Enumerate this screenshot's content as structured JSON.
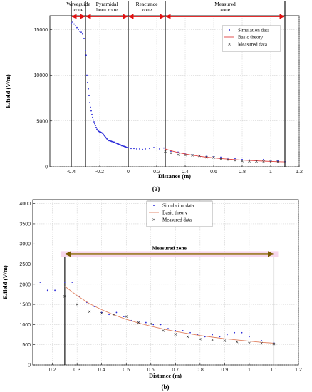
{
  "chart_data": [
    {
      "id": "a",
      "type": "scatter",
      "caption": "(a)",
      "xlabel": "Distance (m)",
      "ylabel": "E/field (V/m)",
      "xlim": [
        -0.55,
        1.2
      ],
      "ylim": [
        0,
        16500
      ],
      "xticks": [
        -0.4,
        -0.2,
        0,
        0.2,
        0.4,
        0.6,
        0.8,
        1,
        1.2
      ],
      "xtick_labels": [
        "-0.4",
        "-0.2",
        "0",
        "0.2",
        "0.4",
        "0.6",
        "0.8",
        "1",
        "1.2"
      ],
      "yticks": [
        0,
        5000,
        10000,
        15000
      ],
      "ytick_labels": [
        "0",
        "5000",
        "10000",
        "15000"
      ],
      "grid": true,
      "legend_position": "top-right",
      "zone_boundaries": [
        -0.4,
        -0.3,
        0,
        0.26,
        1.1
      ],
      "zones": [
        {
          "label_lines": [
            "Waveguide",
            "zone"
          ],
          "from": -0.4,
          "to": -0.3
        },
        {
          "label_lines": [
            "Pyramidal",
            "horn zone"
          ],
          "from": -0.3,
          "to": 0
        },
        {
          "label_lines": [
            "Reactance",
            "zone"
          ],
          "from": 0,
          "to": 0.26
        },
        {
          "label_lines": [
            "Measured",
            "zone"
          ],
          "from": 0.26,
          "to": 1.1
        }
      ],
      "series": [
        {
          "name": "Simulation data",
          "kind": "dots",
          "color": "#2a2ad8",
          "x": [
            -0.4,
            -0.39,
            -0.38,
            -0.37,
            -0.36,
            -0.35,
            -0.34,
            -0.33,
            -0.32,
            -0.31,
            -0.3,
            -0.295,
            -0.29,
            -0.285,
            -0.28,
            -0.275,
            -0.27,
            -0.265,
            -0.26,
            -0.255,
            -0.25,
            -0.245,
            -0.24,
            -0.235,
            -0.23,
            -0.225,
            -0.22,
            -0.215,
            -0.21,
            -0.205,
            -0.2,
            -0.195,
            -0.19,
            -0.185,
            -0.18,
            -0.175,
            -0.17,
            -0.165,
            -0.16,
            -0.155,
            -0.15,
            -0.145,
            -0.14,
            -0.135,
            -0.13,
            -0.125,
            -0.12,
            -0.115,
            -0.11,
            -0.105,
            -0.1,
            -0.095,
            -0.09,
            -0.085,
            -0.08,
            -0.075,
            -0.07,
            -0.065,
            -0.06,
            -0.055,
            -0.05,
            -0.045,
            -0.04,
            -0.035,
            -0.03,
            -0.025,
            -0.02,
            -0.015,
            -0.01,
            -0.005,
            0,
            0.02,
            0.04,
            0.06,
            0.08,
            0.1,
            0.12,
            0.15,
            0.18,
            0.22,
            0.25,
            0.3,
            0.35,
            0.4,
            0.45,
            0.5,
            0.55,
            0.6,
            0.65,
            0.7,
            0.75,
            0.8,
            0.85,
            0.9,
            0.95,
            1.0,
            1.05,
            1.1
          ],
          "y": [
            15700,
            15800,
            15600,
            15400,
            15200,
            15000,
            14800,
            14700,
            14500,
            14000,
            12700,
            12200,
            10000,
            9200,
            8500,
            7800,
            7000,
            6500,
            6100,
            5700,
            5400,
            5100,
            4900,
            4700,
            4500,
            4300,
            4100,
            4000,
            3900,
            3850,
            3800,
            3800,
            3750,
            3700,
            3650,
            3550,
            3450,
            3350,
            3250,
            3150,
            3050,
            2950,
            2900,
            2850,
            2850,
            2800,
            2800,
            2750,
            2750,
            2700,
            2700,
            2650,
            2600,
            2600,
            2550,
            2500,
            2500,
            2450,
            2400,
            2400,
            2350,
            2300,
            2300,
            2250,
            2250,
            2200,
            2200,
            2150,
            2100,
            2100,
            2100,
            2000,
            2000,
            1950,
            1950,
            1900,
            1950,
            2000,
            2100,
            1950,
            2050,
            1700,
            1600,
            1500,
            1300,
            1200,
            1150,
            1100,
            1050,
            950,
            900,
            800,
            750,
            700,
            800,
            700,
            650,
            550
          ]
        },
        {
          "name": "Basic theory",
          "kind": "line",
          "color": "#e04040",
          "x": [
            0.26,
            0.3,
            0.35,
            0.4,
            0.45,
            0.5,
            0.55,
            0.6,
            0.65,
            0.7,
            0.75,
            0.8,
            0.85,
            0.9,
            0.95,
            1.0,
            1.05,
            1.1
          ],
          "y": [
            1950,
            1760,
            1560,
            1400,
            1270,
            1150,
            1050,
            970,
            900,
            840,
            780,
            730,
            690,
            650,
            620,
            590,
            560,
            540
          ]
        },
        {
          "name": "Measured data",
          "kind": "cross",
          "color": "#333333",
          "x": [
            0.26,
            0.3,
            0.35,
            0.4,
            0.45,
            0.5,
            0.55,
            0.6,
            0.65,
            0.7,
            0.75,
            0.8,
            0.85,
            0.9,
            0.95,
            1.0,
            1.05,
            1.1
          ],
          "y": [
            1700,
            1500,
            1320,
            1280,
            1260,
            1200,
            1050,
            1020,
            850,
            760,
            700,
            640,
            620,
            600,
            570,
            540,
            540,
            520
          ]
        }
      ]
    },
    {
      "id": "b",
      "type": "scatter",
      "caption": "(b)",
      "xlabel": "Distance (m)",
      "ylabel": "E/field (V/m)",
      "xlim": [
        0.12,
        1.2
      ],
      "ylim": [
        0,
        4100
      ],
      "xticks": [
        0.2,
        0.3,
        0.4,
        0.5,
        0.6,
        0.7,
        0.8,
        0.9,
        1,
        1.1,
        1.2
      ],
      "xtick_labels": [
        "0.2",
        "0.3",
        "0.4",
        "0.5",
        "0.6",
        "0.7",
        "0.8",
        "0.9",
        "1",
        "1.1",
        "1.2"
      ],
      "yticks": [
        0,
        500,
        1000,
        1500,
        2000,
        2500,
        3000,
        3500,
        4000
      ],
      "ytick_labels": [
        "0",
        "500",
        "1000",
        "1500",
        "2000",
        "2500",
        "3000",
        "3500",
        "4000"
      ],
      "grid": true,
      "legend_position": "top-right",
      "zone_boundaries": [
        0.25,
        1.1
      ],
      "zone_label": "Measured zone",
      "zone_arrow": {
        "from": 0.25,
        "to": 1.1,
        "y": 2750
      },
      "series": [
        {
          "name": "Simulation data",
          "kind": "dots",
          "color": "#2a2ad8",
          "x": [
            0.15,
            0.18,
            0.21,
            0.25,
            0.28,
            0.31,
            0.34,
            0.37,
            0.4,
            0.43,
            0.46,
            0.49,
            0.52,
            0.55,
            0.58,
            0.61,
            0.64,
            0.67,
            0.7,
            0.73,
            0.76,
            0.79,
            0.82,
            0.85,
            0.88,
            0.91,
            0.94,
            0.97,
            1.0,
            1.05,
            1.1
          ],
          "y": [
            2050,
            1850,
            1850,
            2050,
            2050,
            1700,
            1550,
            1450,
            1300,
            1250,
            1300,
            1200,
            1100,
            1050,
            1050,
            1000,
            1000,
            900,
            850,
            850,
            800,
            750,
            700,
            750,
            700,
            750,
            800,
            800,
            700,
            600,
            550
          ]
        },
        {
          "name": "Basic theory",
          "kind": "line",
          "color": "#e08060",
          "x": [
            0.25,
            0.3,
            0.35,
            0.4,
            0.45,
            0.5,
            0.55,
            0.6,
            0.65,
            0.7,
            0.75,
            0.8,
            0.85,
            0.9,
            0.95,
            1.0,
            1.05,
            1.1
          ],
          "y": [
            1950,
            1720,
            1520,
            1370,
            1240,
            1130,
            1040,
            960,
            890,
            830,
            780,
            730,
            690,
            650,
            620,
            590,
            560,
            540
          ]
        },
        {
          "name": "Measured data",
          "kind": "cross",
          "color": "#333333",
          "x": [
            0.25,
            0.3,
            0.35,
            0.4,
            0.45,
            0.5,
            0.55,
            0.6,
            0.65,
            0.7,
            0.75,
            0.8,
            0.85,
            0.9,
            0.95,
            1.0,
            1.05,
            1.1
          ],
          "y": [
            1700,
            1500,
            1320,
            1280,
            1250,
            1200,
            1050,
            1020,
            850,
            760,
            700,
            640,
            620,
            600,
            570,
            540,
            540,
            520
          ]
        }
      ]
    }
  ]
}
